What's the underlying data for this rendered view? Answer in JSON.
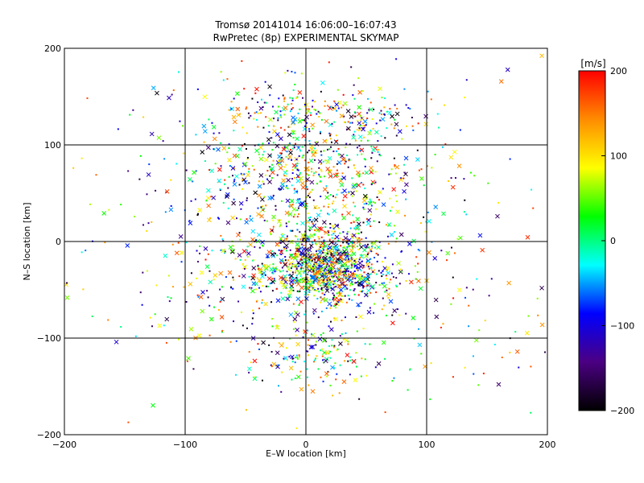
{
  "chart_data": [
    {
      "type": "scatter",
      "title": "Tromsø 20141014 16:06:00–16:07:43",
      "subtitle": "RwPretec (8p) EXPERIMENTAL SKYMAP",
      "xlabel": "E–W location [km]",
      "ylabel": "N–S location [km]",
      "xlim": [
        -200,
        200
      ],
      "ylim": [
        -200,
        200
      ],
      "xticks": [
        -200,
        -100,
        0,
        100,
        200
      ],
      "yticks": [
        -200,
        -100,
        0,
        100,
        200
      ],
      "xtick_labels": [
        "−200",
        "−100",
        "0",
        "100",
        "200"
      ],
      "ytick_labels": [
        "−200",
        "−100",
        "0",
        "100",
        "200"
      ],
      "grid": true,
      "marker_kinds": [
        "cross",
        "dot"
      ],
      "color_encoding": "velocity [m/s]",
      "clusters": [
        {
          "x": 0,
          "y": 5,
          "sx": 55,
          "sy": 55,
          "n": 520
        },
        {
          "x": 15,
          "y": -20,
          "sx": 22,
          "sy": 18,
          "n": 600
        },
        {
          "x": 0,
          "y": 80,
          "sx": 40,
          "sy": 18,
          "n": 300
        },
        {
          "x": 20,
          "y": -40,
          "sx": 30,
          "sy": 10,
          "n": 260
        },
        {
          "x": -25,
          "y": 135,
          "sx": 25,
          "sy": 15,
          "n": 120
        },
        {
          "x": 50,
          "y": 130,
          "sx": 25,
          "sy": 12,
          "n": 100
        },
        {
          "x": 10,
          "y": -120,
          "sx": 25,
          "sy": 15,
          "n": 120
        },
        {
          "x": 0,
          "y": 0,
          "sx": 110,
          "sy": 110,
          "n": 500
        }
      ]
    },
    {
      "type": "colorbar",
      "title": "[m/s]",
      "range": [
        -200,
        200
      ],
      "ticks": [
        200,
        100,
        0,
        -100,
        -200
      ],
      "tick_labels": [
        "200",
        "100",
        "0",
        "−100",
        "−200"
      ],
      "colors": [
        "#000000",
        "#4b0082",
        "#0000ff",
        "#00ffff",
        "#00ff00",
        "#ffff00",
        "#ff8c00",
        "#ff0000"
      ]
    }
  ]
}
